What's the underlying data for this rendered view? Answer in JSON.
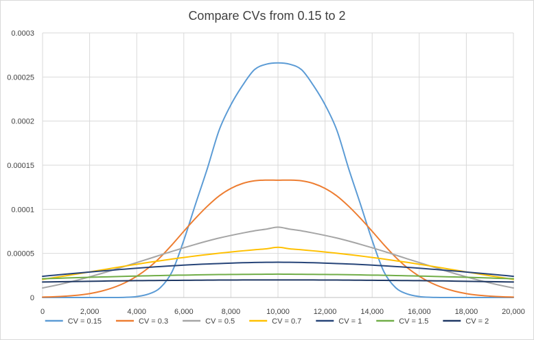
{
  "chart_data": {
    "type": "line",
    "title": "Compare CVs from 0.15 to 2",
    "xlabel": "",
    "ylabel": "",
    "xlim": [
      0,
      20000
    ],
    "ylim": [
      0,
      0.0003
    ],
    "x_ticks": [
      "0",
      "2,000",
      "4,000",
      "6,000",
      "8,000",
      "10,000",
      "12,000",
      "14,000",
      "16,000",
      "18,000",
      "20,000"
    ],
    "y_ticks": [
      "0",
      "0.00005",
      "0.0001",
      "0.00015",
      "0.0002",
      "0.00025",
      "0.0003"
    ],
    "grid": true,
    "legend_position": "bottom",
    "x": [
      0,
      500,
      1000,
      1500,
      2000,
      2500,
      3000,
      3500,
      4000,
      4500,
      5000,
      5500,
      6000,
      6500,
      7000,
      7500,
      8000,
      8500,
      9000,
      9500,
      10000,
      10500,
      11000,
      11500,
      12000,
      12500,
      13000,
      13500,
      14000,
      14500,
      15000,
      15500,
      16000,
      16500,
      17000,
      17500,
      18000,
      18500,
      19000,
      19500,
      20000
    ],
    "series": [
      {
        "name": "CV = 0.15",
        "color": "#5b9bd5",
        "values": [
          0,
          0,
          0,
          0,
          0,
          0,
          0,
          2e-07,
          1.1e-06,
          3.9e-06,
          1.11e-05,
          2.92e-05,
          6.49e-05,
          0.000106,
          0.0001463,
          0.0001897,
          0.0002185,
          0.0002406,
          0.0002583,
          0.0002645,
          0.000266,
          0.0002645,
          0.0002583,
          0.0002406,
          0.0002185,
          0.0001897,
          0.0001463,
          0.000106,
          6.49e-05,
          2.92e-05,
          1.11e-05,
          3.9e-06,
          1.1e-06,
          2e-07,
          0,
          0,
          0,
          0,
          0,
          0,
          0
        ]
      },
      {
        "name": "CV = 0.3",
        "color": "#ed7d31",
        "values": [
          5e-07,
          9e-07,
          1.6e-06,
          2.6e-06,
          4.4e-06,
          7.2e-06,
          1.12e-05,
          1.67e-05,
          2.41e-05,
          3.36e-05,
          4.56e-05,
          5.98e-05,
          7.51e-05,
          8.99e-05,
          0.0001035,
          0.0001152,
          0.0001237,
          0.0001293,
          0.0001323,
          0.0001331,
          0.000133,
          0.0001331,
          0.0001323,
          0.0001293,
          0.0001237,
          0.0001152,
          0.0001035,
          8.99e-05,
          7.51e-05,
          5.98e-05,
          4.56e-05,
          3.36e-05,
          2.41e-05,
          1.67e-05,
          1.12e-05,
          7.2e-06,
          4.4e-06,
          2.6e-06,
          1.6e-06,
          9e-07,
          5e-07
        ]
      },
      {
        "name": "CV = 0.5",
        "color": "#a5a5a5",
        "values": [
          1.08e-05,
          1.35e-05,
          1.65e-05,
          1.98e-05,
          2.34e-05,
          2.72e-05,
          3.12e-05,
          3.54e-05,
          3.96e-05,
          4.38e-05,
          4.81e-05,
          5.23e-05,
          5.64e-05,
          6.03e-05,
          6.4e-05,
          6.74e-05,
          7.04e-05,
          7.31e-05,
          7.56e-05,
          7.75e-05,
          7.98e-05,
          7.75e-05,
          7.56e-05,
          7.31e-05,
          7.04e-05,
          6.74e-05,
          6.4e-05,
          6.03e-05,
          5.64e-05,
          5.23e-05,
          4.81e-05,
          4.38e-05,
          3.96e-05,
          3.54e-05,
          3.12e-05,
          2.72e-05,
          2.34e-05,
          1.98e-05,
          1.65e-05,
          1.35e-05,
          1.08e-05
        ]
      },
      {
        "name": "CV = 0.7",
        "color": "#ffc000",
        "values": [
          2.05e-05,
          2.26e-05,
          2.47e-05,
          2.68e-05,
          2.9e-05,
          3.12e-05,
          3.34e-05,
          3.56e-05,
          3.77e-05,
          3.98e-05,
          4.17e-05,
          4.36e-05,
          4.54e-05,
          4.71e-05,
          4.87e-05,
          5.02e-05,
          5.16e-05,
          5.29e-05,
          5.41e-05,
          5.52e-05,
          5.69e-05,
          5.52e-05,
          5.41e-05,
          5.29e-05,
          5.16e-05,
          5.02e-05,
          4.87e-05,
          4.71e-05,
          4.54e-05,
          4.36e-05,
          4.17e-05,
          3.98e-05,
          3.77e-05,
          3.56e-05,
          3.34e-05,
          3.12e-05,
          2.9e-05,
          2.68e-05,
          2.47e-05,
          2.26e-05,
          2.05e-05
        ]
      },
      {
        "name": "CV = 1",
        "color": "#264478",
        "values": [
          2.4e-05,
          2.53e-05,
          2.65e-05,
          2.77e-05,
          2.89e-05,
          3e-05,
          3.11e-05,
          3.22e-05,
          3.32e-05,
          3.42e-05,
          3.51e-05,
          3.59e-05,
          3.67e-05,
          3.74e-05,
          3.8e-05,
          3.85e-05,
          3.9e-05,
          3.94e-05,
          3.97e-05,
          3.99e-05,
          4e-05,
          3.99e-05,
          3.97e-05,
          3.94e-05,
          3.9e-05,
          3.85e-05,
          3.8e-05,
          3.74e-05,
          3.67e-05,
          3.59e-05,
          3.51e-05,
          3.42e-05,
          3.32e-05,
          3.22e-05,
          3.11e-05,
          3e-05,
          2.89e-05,
          2.77e-05,
          2.65e-05,
          2.53e-05,
          2.4e-05
        ]
      },
      {
        "name": "CV = 1.5",
        "color": "#70ad47",
        "values": [
          2.13e-05,
          2.17e-05,
          2.21e-05,
          2.25e-05,
          2.29e-05,
          2.33e-05,
          2.36e-05,
          2.4e-05,
          2.43e-05,
          2.46e-05,
          2.49e-05,
          2.52e-05,
          2.54e-05,
          2.56e-05,
          2.58e-05,
          2.6e-05,
          2.61e-05,
          2.62e-05,
          2.63e-05,
          2.64e-05,
          2.65e-05,
          2.64e-05,
          2.63e-05,
          2.62e-05,
          2.61e-05,
          2.6e-05,
          2.58e-05,
          2.56e-05,
          2.54e-05,
          2.52e-05,
          2.49e-05,
          2.46e-05,
          2.43e-05,
          2.4e-05,
          2.36e-05,
          2.33e-05,
          2.29e-05,
          2.25e-05,
          2.21e-05,
          2.17e-05,
          2.13e-05
        ]
      },
      {
        "name": "CV = 2",
        "color": "#1f3864",
        "values": [
          1.76e-05,
          1.78e-05,
          1.8e-05,
          1.82e-05,
          1.84e-05,
          1.86e-05,
          1.88e-05,
          1.89e-05,
          1.91e-05,
          1.92e-05,
          1.93e-05,
          1.94e-05,
          1.95e-05,
          1.96e-05,
          1.97e-05,
          1.98e-05,
          1.98e-05,
          1.99e-05,
          1.99e-05,
          1.99e-05,
          1.99e-05,
          1.99e-05,
          1.99e-05,
          1.99e-05,
          1.98e-05,
          1.98e-05,
          1.97e-05,
          1.96e-05,
          1.95e-05,
          1.94e-05,
          1.93e-05,
          1.92e-05,
          1.91e-05,
          1.89e-05,
          1.88e-05,
          1.86e-05,
          1.84e-05,
          1.82e-05,
          1.8e-05,
          1.78e-05,
          1.76e-05
        ]
      }
    ]
  }
}
